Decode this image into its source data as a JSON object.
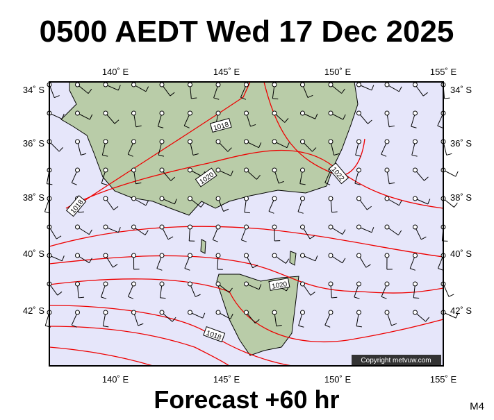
{
  "header": {
    "title": "0500 AEDT Wed 17 Dec 2025"
  },
  "axes": {
    "top": [
      "140˚ E",
      "145˚ E",
      "150˚ E",
      "155˚ E"
    ],
    "bottom": [
      "140˚ E",
      "145˚ E",
      "150˚ E",
      "155˚ E"
    ],
    "left": [
      "34˚ S",
      "36˚ S",
      "38˚ S",
      "40˚ S",
      "42˚ S"
    ],
    "right": [
      "34˚ S",
      "36˚ S",
      "38˚ S",
      "40˚ S",
      "42˚ S"
    ]
  },
  "isobar_labels": [
    "1018",
    "1020",
    "1018",
    "1020",
    "1018",
    "1022"
  ],
  "copyright": "Copyright metvuw.com",
  "footer": {
    "forecast": "Forecast +60 hr",
    "model": "M4"
  }
}
